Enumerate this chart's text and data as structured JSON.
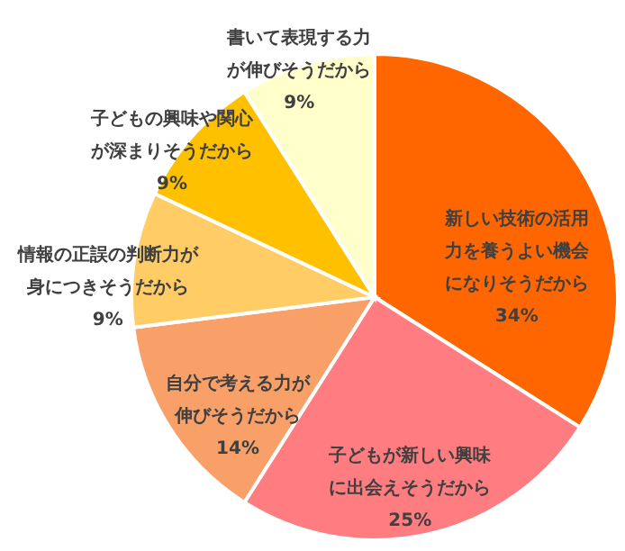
{
  "chart_data": {
    "type": "pie",
    "categories": [
      "新しい技術の活用力を養うよい機会になりそうだから",
      "子どもが新しい興味に出会えそうだから",
      "自分で考える力が伸びそうだから",
      "情報の正誤の判断力が身につきそうだから",
      "子どもの興味や関心が深まりそうだから",
      "書いて表現する力が伸びそうだから"
    ],
    "values": [
      34,
      25,
      14,
      9,
      9,
      9
    ],
    "value_labels": [
      "34%",
      "25%",
      "14%",
      "9%",
      "9%",
      "9%"
    ],
    "colors": [
      "#ff6600",
      "#ff7c80",
      "#f8a068",
      "#ffcc66",
      "#ffc000",
      "#ffffcc"
    ],
    "legend": false
  }
}
